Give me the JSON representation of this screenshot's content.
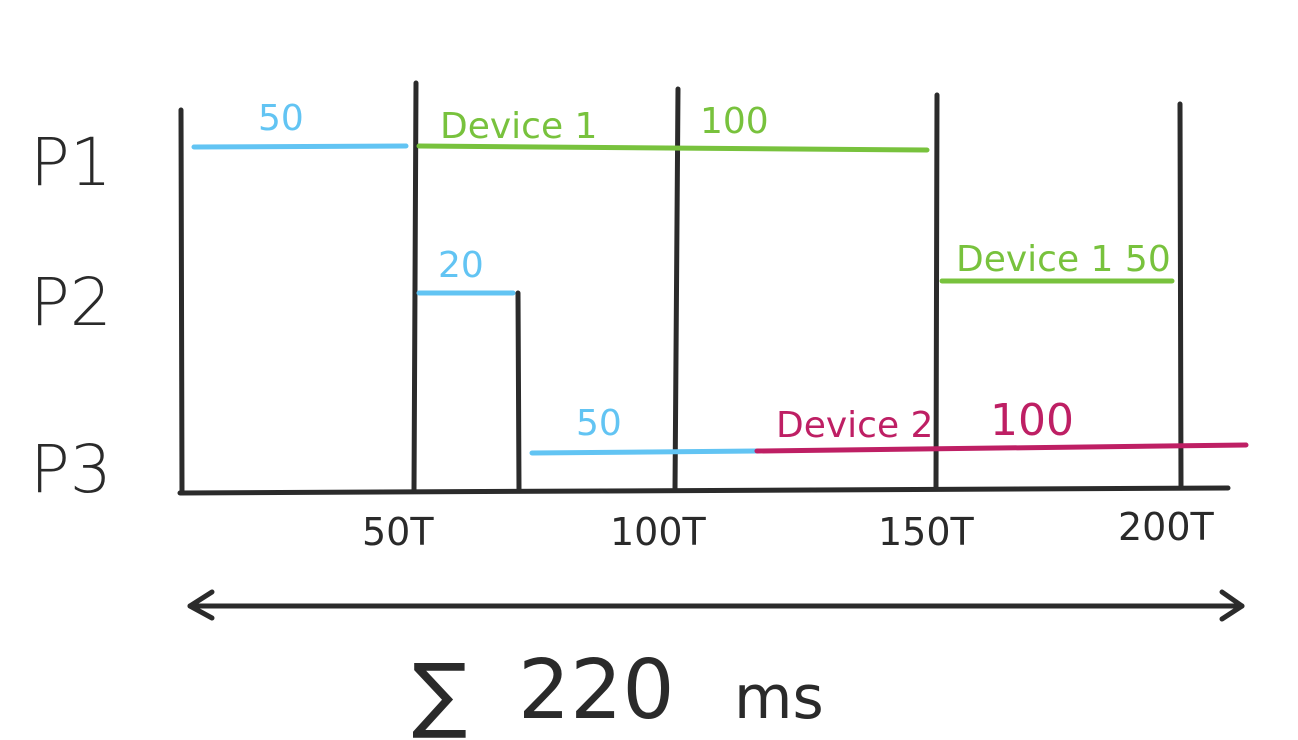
{
  "process_labels": [
    "P1",
    "P2",
    "P3"
  ],
  "time_ticks": [
    "50T",
    "100T",
    "150T",
    "200T"
  ],
  "segments": {
    "p1_cpu": {
      "label": "50",
      "kind": "cpu"
    },
    "p1_device": {
      "label_device": "Device 1",
      "label_value": "100",
      "kind": "device"
    },
    "p2_cpu": {
      "label": "20",
      "kind": "cpu"
    },
    "p2_device": {
      "label": "Device 1 50",
      "kind": "device"
    },
    "p3_cpu": {
      "label": "50",
      "kind": "cpu"
    },
    "p3_device": {
      "label_device": "Device 2",
      "label_value": "100",
      "kind": "device2"
    }
  },
  "total": {
    "symbol": "∑",
    "value": "220",
    "unit": "ms"
  },
  "colors": {
    "cpu": "#62c4f3",
    "device": "#78c23d",
    "device2": "#be1f64",
    "axis": "#2b2b2b"
  }
}
